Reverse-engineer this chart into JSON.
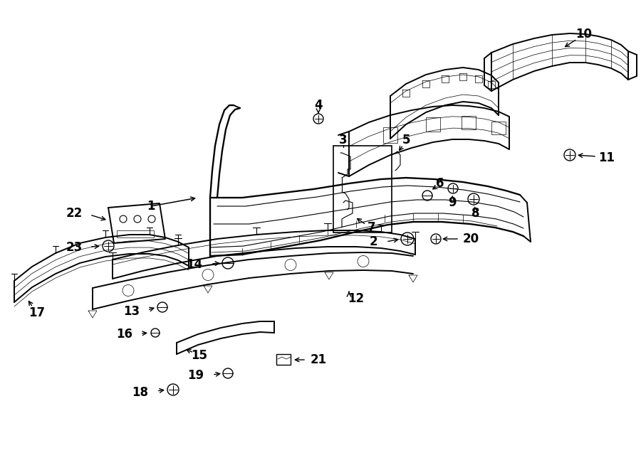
{
  "bg_color": "#ffffff",
  "line_color": "#000000",
  "fig_width": 9.0,
  "fig_height": 6.61,
  "dpi": 100,
  "lw_main": 1.4,
  "lw_detail": 0.8,
  "lw_thin": 0.5,
  "fontsize_label": 12,
  "parts": {
    "bumper_cover": "1",
    "bolt_center": "2",
    "bracket_box": "3",
    "screw_top": "4",
    "clip_box": "5",
    "pin_6": "6",
    "bracket_7": "7",
    "bolt_8": "8",
    "bolt_9": "9",
    "reinf_bar": "10",
    "bolt_11": "11",
    "absorber_corner": "12",
    "clip_13": "13",
    "clip_14": "14",
    "deflector": "15",
    "clip_16": "16",
    "lower_grille": "17",
    "bolt_18": "18",
    "clip_19": "19",
    "bolt_20": "20",
    "nut_21": "21",
    "bracket_22": "22",
    "bolt_23": "23"
  }
}
